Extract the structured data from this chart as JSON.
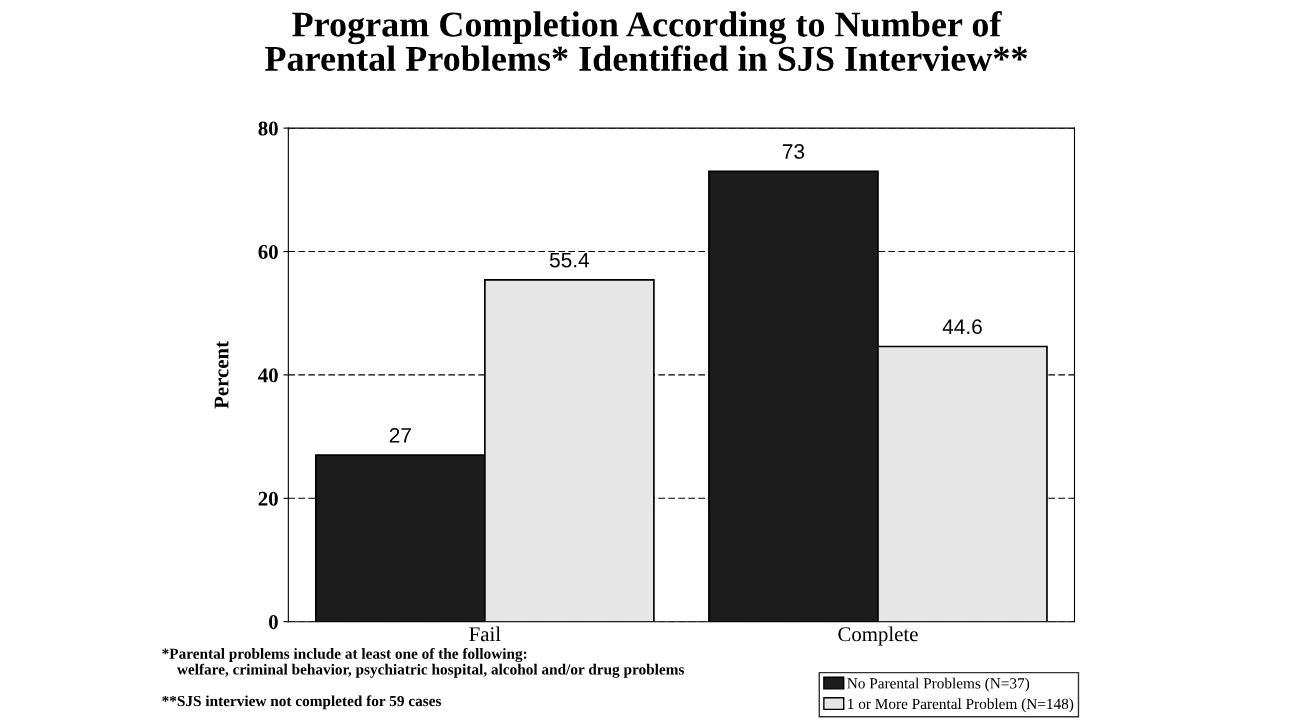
{
  "chart_data": {
    "type": "bar",
    "title": "Program Completion According to Number of\nParental Problems* Identified in SJS Interview**",
    "ylabel": "Percent",
    "categories": [
      "Fail",
      "Complete"
    ],
    "series": [
      {
        "name": "No Parental Problems (N=37)",
        "color": "#1c1c1c",
        "values": [
          27,
          73
        ]
      },
      {
        "name": "1 or More Parental Problem (N=148)",
        "color": "#e6e6e6",
        "values": [
          55.4,
          44.6
        ]
      }
    ],
    "ylim": [
      0,
      80
    ],
    "yticks": [
      0,
      20,
      40,
      60,
      80
    ],
    "grid": "y",
    "data_labels": true,
    "legend": "bottom right",
    "annotations": [
      "*Parental problems include at least one of the following:\n    welfare, criminal behavior, psychiatric hospital, alcohol and/or drug problems",
      "**SJS interview not completed for 59 cases"
    ]
  }
}
